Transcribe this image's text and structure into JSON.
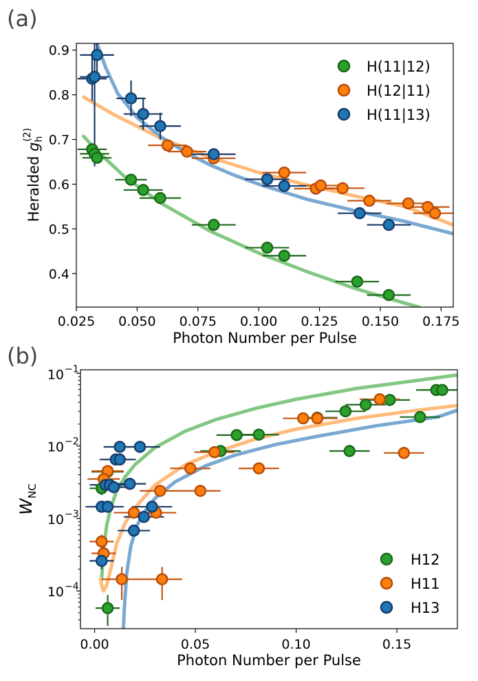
{
  "chart_data": [
    {
      "panel": "(a)",
      "type": "scatter",
      "xlabel": "Photon Number per Pulse",
      "ylabel": "Heralded g_h^(2)",
      "ylabel_main": "Heralded ",
      "ylabel_g": "g",
      "ylabel_sub": "h",
      "ylabel_sup": "(2)",
      "xlim": [
        0.025,
        0.18
      ],
      "ylim": [
        0.325,
        0.915
      ],
      "xticks": [
        0.025,
        0.05,
        0.075,
        0.1,
        0.125,
        0.15,
        0.175
      ],
      "xtick_labels": [
        "0.025",
        "0.050",
        "0.075",
        "0.100",
        "0.125",
        "0.150",
        "0.175"
      ],
      "yticks": [
        0.4,
        0.5,
        0.6,
        0.7,
        0.8,
        0.9
      ],
      "ytick_labels": [
        "0.4",
        "0.5",
        "0.6",
        "0.7",
        "0.8",
        "0.9"
      ],
      "legend_position": "top-right",
      "series": [
        {
          "name": "H(11|12)",
          "face": "#2ca02c",
          "edge": "#1a6a1a",
          "fit_color": "#82c882",
          "err_color": "#1f6a1f",
          "points": [
            {
              "x": 0.0315,
              "y": 0.678,
              "xerr": 0.006,
              "yerr": 0.012
            },
            {
              "x": 0.0325,
              "y": 0.668,
              "xerr": 0.006,
              "yerr": 0.012
            },
            {
              "x": 0.0335,
              "y": 0.659,
              "xerr": 0.006,
              "yerr": 0.012
            },
            {
              "x": 0.0475,
              "y": 0.61,
              "xerr": 0.0065,
              "yerr": 0.01
            },
            {
              "x": 0.0525,
              "y": 0.587,
              "xerr": 0.008,
              "yerr": 0.01
            },
            {
              "x": 0.0595,
              "y": 0.569,
              "xerr": 0.0085,
              "yerr": 0.01
            },
            {
              "x": 0.0815,
              "y": 0.509,
              "xerr": 0.009,
              "yerr": 0.01
            },
            {
              "x": 0.1035,
              "y": 0.458,
              "xerr": 0.009,
              "yerr": 0.01
            },
            {
              "x": 0.1105,
              "y": 0.44,
              "xerr": 0.009,
              "yerr": 0.01
            },
            {
              "x": 0.1405,
              "y": 0.382,
              "xerr": 0.009,
              "yerr": 0.01
            },
            {
              "x": 0.1535,
              "y": 0.352,
              "xerr": 0.009,
              "yerr": 0.01
            }
          ],
          "fit": {
            "x": [
              0.028,
              0.034,
              0.045,
              0.06,
              0.08,
              0.1,
              0.12,
              0.14,
              0.16,
              0.166
            ],
            "y": [
              0.707,
              0.672,
              0.616,
              0.557,
              0.495,
              0.446,
              0.404,
              0.366,
              0.334,
              0.325
            ]
          }
        },
        {
          "name": "H(12|11)",
          "face": "#ff7f0e",
          "edge": "#b84c08",
          "fit_color": "#ffbb7a",
          "err_color": "#c45510",
          "points": [
            {
              "x": 0.0625,
              "y": 0.687,
              "xerr": 0.008,
              "yerr": 0.012
            },
            {
              "x": 0.0705,
              "y": 0.673,
              "xerr": 0.008,
              "yerr": 0.012
            },
            {
              "x": 0.0815,
              "y": 0.658,
              "xerr": 0.009,
              "yerr": 0.012
            },
            {
              "x": 0.1105,
              "y": 0.626,
              "xerr": 0.009,
              "yerr": 0.01
            },
            {
              "x": 0.1235,
              "y": 0.59,
              "xerr": 0.009,
              "yerr": 0.01
            },
            {
              "x": 0.1255,
              "y": 0.597,
              "xerr": 0.009,
              "yerr": 0.01
            },
            {
              "x": 0.1345,
              "y": 0.591,
              "xerr": 0.009,
              "yerr": 0.01
            },
            {
              "x": 0.1455,
              "y": 0.563,
              "xerr": 0.009,
              "yerr": 0.01
            },
            {
              "x": 0.1615,
              "y": 0.557,
              "xerr": 0.009,
              "yerr": 0.01
            },
            {
              "x": 0.1695,
              "y": 0.549,
              "xerr": 0.009,
              "yerr": 0.01
            },
            {
              "x": 0.1725,
              "y": 0.535,
              "xerr": 0.009,
              "yerr": 0.01
            }
          ],
          "fit": {
            "x": [
              0.028,
              0.04,
              0.06,
              0.08,
              0.1,
              0.12,
              0.14,
              0.16,
              0.18
            ],
            "y": [
              0.795,
              0.757,
              0.702,
              0.66,
              0.626,
              0.598,
              0.573,
              0.55,
              0.509
            ]
          }
        },
        {
          "name": "H(11|13)",
          "face": "#1f77b4",
          "edge": "#163d6b",
          "fit_color": "#79a9d3",
          "err_color": "#1d3a66",
          "points": [
            {
              "x": 0.0315,
              "y": 0.836,
              "xerr": 0.006,
              "yerr": 0.05
            },
            {
              "x": 0.0325,
              "y": 0.84,
              "xerr": 0.006,
              "yerr": 0.2
            },
            {
              "x": 0.0335,
              "y": 0.889,
              "xerr": 0.007,
              "yerr": 0.05
            },
            {
              "x": 0.0475,
              "y": 0.792,
              "xerr": 0.006,
              "yerr": 0.04
            },
            {
              "x": 0.0525,
              "y": 0.757,
              "xerr": 0.008,
              "yerr": 0.035
            },
            {
              "x": 0.0595,
              "y": 0.73,
              "xerr": 0.0085,
              "yerr": 0.03
            },
            {
              "x": 0.0815,
              "y": 0.667,
              "xerr": 0.009,
              "yerr": 0.012
            },
            {
              "x": 0.1035,
              "y": 0.611,
              "xerr": 0.009,
              "yerr": 0.01
            },
            {
              "x": 0.1105,
              "y": 0.596,
              "xerr": 0.009,
              "yerr": 0.01
            },
            {
              "x": 0.1415,
              "y": 0.535,
              "xerr": 0.009,
              "yerr": 0.01
            },
            {
              "x": 0.1535,
              "y": 0.509,
              "xerr": 0.009,
              "yerr": 0.01
            }
          ],
          "fit": {
            "x": [
              0.0335,
              0.037,
              0.042,
              0.05,
              0.06,
              0.07,
              0.08,
              0.09,
              0.1,
              0.12,
              0.14,
              0.16,
              0.18
            ],
            "y": [
              0.915,
              0.862,
              0.803,
              0.749,
              0.705,
              0.671,
              0.643,
              0.62,
              0.6,
              0.566,
              0.54,
              0.517,
              0.489
            ]
          }
        }
      ]
    },
    {
      "panel": "(b)",
      "type": "scatter",
      "xlabel": "Photon Number per Pulse",
      "ylabel": "W_NC",
      "ylabel_main": "W",
      "ylabel_sub": "NC",
      "yscale": "log",
      "xlim": [
        -0.007,
        0.18
      ],
      "ylim_log10": [
        -4.52,
        -0.95
      ],
      "xticks": [
        0.0,
        0.05,
        0.1,
        0.15
      ],
      "xtick_labels": [
        "0.00",
        "0.05",
        "0.10",
        "0.15"
      ],
      "yticks_exp": [
        -4,
        -3,
        -2,
        -1
      ],
      "ytick_base": "10",
      "legend_position": "bottom-right",
      "series": [
        {
          "name": "H12",
          "face": "#2ca02c",
          "edge": "#1a6a1a",
          "fit_color": "#82c882",
          "err_color": "#1f6a1f",
          "points": [
            {
              "x": 0.0065,
              "y": 5.8e-05,
              "xerr": 0.006,
              "yerr_lo": 2.5e-05,
              "yerr_hi": 3e-05
            },
            {
              "x": 0.0035,
              "y": 0.0026,
              "xerr": 0.006,
              "yerr_lo": 0.0005,
              "yerr_hi": 0.0005
            },
            {
              "x": 0.0065,
              "y": 0.0044,
              "xerr": 0.008,
              "yerr_lo": 0.0008,
              "yerr_hi": 0.0008
            },
            {
              "x": 0.0625,
              "y": 0.0085,
              "xerr": 0.01,
              "yerr_lo": 0.0008,
              "yerr_hi": 0.0008
            },
            {
              "x": 0.0705,
              "y": 0.0141,
              "xerr": 0.01,
              "yerr_lo": 0.0012,
              "yerr_hi": 0.0012
            },
            {
              "x": 0.0815,
              "y": 0.0143,
              "xerr": 0.01,
              "yerr_lo": 0.0012,
              "yerr_hi": 0.0012
            },
            {
              "x": 0.1105,
              "y": 0.0245,
              "xerr": 0.01,
              "yerr_lo": 0.002,
              "yerr_hi": 0.002
            },
            {
              "x": 0.1245,
              "y": 0.03,
              "xerr": 0.01,
              "yerr_lo": 0.002,
              "yerr_hi": 0.002
            },
            {
              "x": 0.1265,
              "y": 0.0085,
              "xerr": 0.01,
              "yerr_lo": 0.0007,
              "yerr_hi": 0.0007
            },
            {
              "x": 0.1345,
              "y": 0.037,
              "xerr": 0.01,
              "yerr_lo": 0.003,
              "yerr_hi": 0.003
            },
            {
              "x": 0.1465,
              "y": 0.043,
              "xerr": 0.01,
              "yerr_lo": 0.003,
              "yerr_hi": 0.003
            },
            {
              "x": 0.1615,
              "y": 0.025,
              "xerr": 0.01,
              "yerr_lo": 0.002,
              "yerr_hi": 0.002
            },
            {
              "x": 0.1695,
              "y": 0.059,
              "xerr": 0.01,
              "yerr_lo": 0.004,
              "yerr_hi": 0.004
            },
            {
              "x": 0.1725,
              "y": 0.059,
              "xerr": 0.01,
              "yerr_lo": 0.004,
              "yerr_hi": 0.004
            }
          ],
          "fit": {
            "x": [
              0.0035,
              0.0045,
              0.006,
              0.008,
              0.011,
              0.015,
              0.02,
              0.03,
              0.045,
              0.06,
              0.08,
              0.1,
              0.13,
              0.16,
              0.18
            ],
            "y": [
              0.000145,
              0.00038,
              0.0008,
              0.0014,
              0.0024,
              0.0037,
              0.0055,
              0.0095,
              0.016,
              0.023,
              0.033,
              0.044,
              0.062,
              0.08,
              0.095
            ]
          }
        },
        {
          "name": "H11",
          "face": "#ff7f0e",
          "edge": "#b84c08",
          "fit_color": "#ffbb7a",
          "err_color": "#c45510",
          "points": [
            {
              "x": 0.0035,
              "y": 0.00048,
              "xerr": 0.006,
              "yerr_lo": 0.00012,
              "yerr_hi": 0.00012
            },
            {
              "x": 0.0045,
              "y": 0.00033,
              "xerr": 0.006,
              "yerr_lo": 0.0001,
              "yerr_hi": 0.0001
            },
            {
              "x": 0.0065,
              "y": 0.0045,
              "xerr": 0.008,
              "yerr_lo": 0.0008,
              "yerr_hi": 0.0008
            },
            {
              "x": 0.0045,
              "y": 0.0035,
              "xerr": 0.008,
              "yerr_lo": 0.0006,
              "yerr_hi": 0.0006
            },
            {
              "x": 0.0135,
              "y": 0.000145,
              "xerr": 0.01,
              "yerr_lo": 7e-05,
              "yerr_hi": 7e-05
            },
            {
              "x": 0.0195,
              "y": 0.0012,
              "xerr": 0.01,
              "yerr_lo": 0.0002,
              "yerr_hi": 0.0002
            },
            {
              "x": 0.0305,
              "y": 0.0012,
              "xerr": 0.01,
              "yerr_lo": 0.0002,
              "yerr_hi": 0.0002
            },
            {
              "x": 0.0325,
              "y": 0.0024,
              "xerr": 0.01,
              "yerr_lo": 0.0003,
              "yerr_hi": 0.0003
            },
            {
              "x": 0.0335,
              "y": 0.000145,
              "xerr": 0.01,
              "yerr_lo": 7e-05,
              "yerr_hi": 7e-05
            },
            {
              "x": 0.0475,
              "y": 0.0049,
              "xerr": 0.01,
              "yerr_lo": 0.0005,
              "yerr_hi": 0.0005
            },
            {
              "x": 0.0525,
              "y": 0.0024,
              "xerr": 0.01,
              "yerr_lo": 0.0003,
              "yerr_hi": 0.0003
            },
            {
              "x": 0.0595,
              "y": 0.0082,
              "xerr": 0.01,
              "yerr_lo": 0.0008,
              "yerr_hi": 0.0008
            },
            {
              "x": 0.0815,
              "y": 0.0049,
              "xerr": 0.01,
              "yerr_lo": 0.0005,
              "yerr_hi": 0.0005
            },
            {
              "x": 0.1035,
              "y": 0.024,
              "xerr": 0.01,
              "yerr_lo": 0.002,
              "yerr_hi": 0.002
            },
            {
              "x": 0.1105,
              "y": 0.024,
              "xerr": 0.01,
              "yerr_lo": 0.002,
              "yerr_hi": 0.002
            },
            {
              "x": 0.1415,
              "y": 0.044,
              "xerr": 0.01,
              "yerr_lo": 0.003,
              "yerr_hi": 0.003
            },
            {
              "x": 0.1535,
              "y": 0.008,
              "xerr": 0.01,
              "yerr_lo": 0.0007,
              "yerr_hi": 0.0007
            }
          ],
          "fit": {
            "x": [
              0.003,
              0.0035,
              0.0045,
              0.006,
              0.008,
              0.011,
              0.015,
              0.02,
              0.03,
              0.045,
              0.06,
              0.08,
              0.1,
              0.13,
              0.16,
              0.18
            ],
            "y": [
              0.000145,
              0.00012,
              0.0001,
              0.00012,
              0.0002,
              0.00045,
              0.00085,
              0.0014,
              0.0029,
              0.0055,
              0.0082,
              0.0125,
              0.017,
              0.024,
              0.031,
              0.036
            ]
          }
        },
        {
          "name": "H13",
          "face": "#1f77b4",
          "edge": "#163d6b",
          "fit_color": "#79a9d3",
          "err_color": "#1d3a66",
          "points": [
            {
              "x": 0.0035,
              "y": 0.00026,
              "xerr": 0.006,
              "yerr_lo": 6e-05,
              "yerr_hi": 6e-05
            },
            {
              "x": 0.0035,
              "y": 0.00145,
              "xerr": 0.008,
              "yerr_lo": 0.0002,
              "yerr_hi": 0.0002
            },
            {
              "x": 0.0065,
              "y": 0.00145,
              "xerr": 0.008,
              "yerr_lo": 0.0002,
              "yerr_hi": 0.0002
            },
            {
              "x": 0.0055,
              "y": 0.0029,
              "xerr": 0.008,
              "yerr_lo": 0.0004,
              "yerr_hi": 0.0004
            },
            {
              "x": 0.0075,
              "y": 0.0029,
              "xerr": 0.008,
              "yerr_lo": 0.0004,
              "yerr_hi": 0.0004
            },
            {
              "x": 0.0095,
              "y": 0.0027,
              "xerr": 0.008,
              "yerr_lo": 0.0004,
              "yerr_hi": 0.0004
            },
            {
              "x": 0.0105,
              "y": 0.0065,
              "xerr": 0.008,
              "yerr_lo": 0.0006,
              "yerr_hi": 0.0006
            },
            {
              "x": 0.0125,
              "y": 0.0065,
              "xerr": 0.008,
              "yerr_lo": 0.0006,
              "yerr_hi": 0.0006
            },
            {
              "x": 0.0125,
              "y": 0.0097,
              "xerr": 0.008,
              "yerr_lo": 0.0008,
              "yerr_hi": 0.0008
            },
            {
              "x": 0.0175,
              "y": 0.003,
              "xerr": 0.008,
              "yerr_lo": 0.0004,
              "yerr_hi": 0.0004
            },
            {
              "x": 0.0195,
              "y": 0.00068,
              "xerr": 0.008,
              "yerr_lo": 0.00012,
              "yerr_hi": 0.00012
            },
            {
              "x": 0.0225,
              "y": 0.0097,
              "xerr": 0.01,
              "yerr_lo": 0.0008,
              "yerr_hi": 0.0008
            },
            {
              "x": 0.0245,
              "y": 0.00105,
              "xerr": 0.01,
              "yerr_lo": 0.00015,
              "yerr_hi": 0.00015
            },
            {
              "x": 0.0285,
              "y": 0.00145,
              "xerr": 0.01,
              "yerr_lo": 0.0002,
              "yerr_hi": 0.0002
            }
          ],
          "fit": {
            "x": [
              0.0143,
              0.0148,
              0.016,
              0.018,
              0.021,
              0.025,
              0.03,
              0.04,
              0.055,
              0.07,
              0.09,
              0.11,
              0.14,
              0.17,
              0.18
            ],
            "y": [
              3e-05,
              6e-05,
              0.00018,
              0.00042,
              0.0008,
              0.00125,
              0.0019,
              0.0032,
              0.0053,
              0.0075,
              0.0105,
              0.0135,
              0.019,
              0.025,
              0.031
            ]
          }
        }
      ]
    }
  ]
}
